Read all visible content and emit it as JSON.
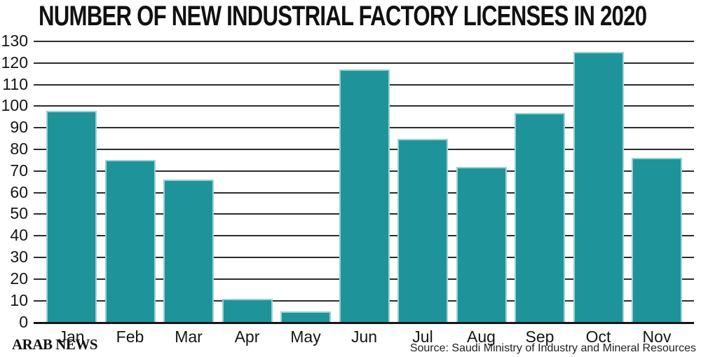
{
  "chart_data": {
    "type": "bar",
    "title": "NUMBER OF NEW INDUSTRIAL FACTORY LICENSES IN 2020",
    "categories": [
      "Jan",
      "Feb",
      "Mar",
      "Apr",
      "May",
      "Jun",
      "Jul",
      "Aug",
      "Sep",
      "Oct",
      "Nov"
    ],
    "values": [
      98,
      75,
      66,
      11,
      5,
      117,
      85,
      72,
      97,
      125,
      76
    ],
    "xlabel": "",
    "ylabel": "",
    "ylim": [
      0,
      130
    ],
    "ytick_interval": 10,
    "yticks": [
      0,
      10,
      20,
      30,
      40,
      50,
      60,
      70,
      80,
      90,
      100,
      110,
      120,
      130
    ],
    "grid": "horizontal",
    "legend": "none",
    "colors": {
      "bar": "#1E949A",
      "bar_edge": "#9BD2D5",
      "gridline": "#2D2D2D",
      "axis": "#161616",
      "text": "#151515",
      "background": "#FFFFFF"
    }
  },
  "footer": {
    "brand": "ARAB NEWS",
    "source": "Source: Saudi Ministry of Industry and Mineral Resources"
  }
}
